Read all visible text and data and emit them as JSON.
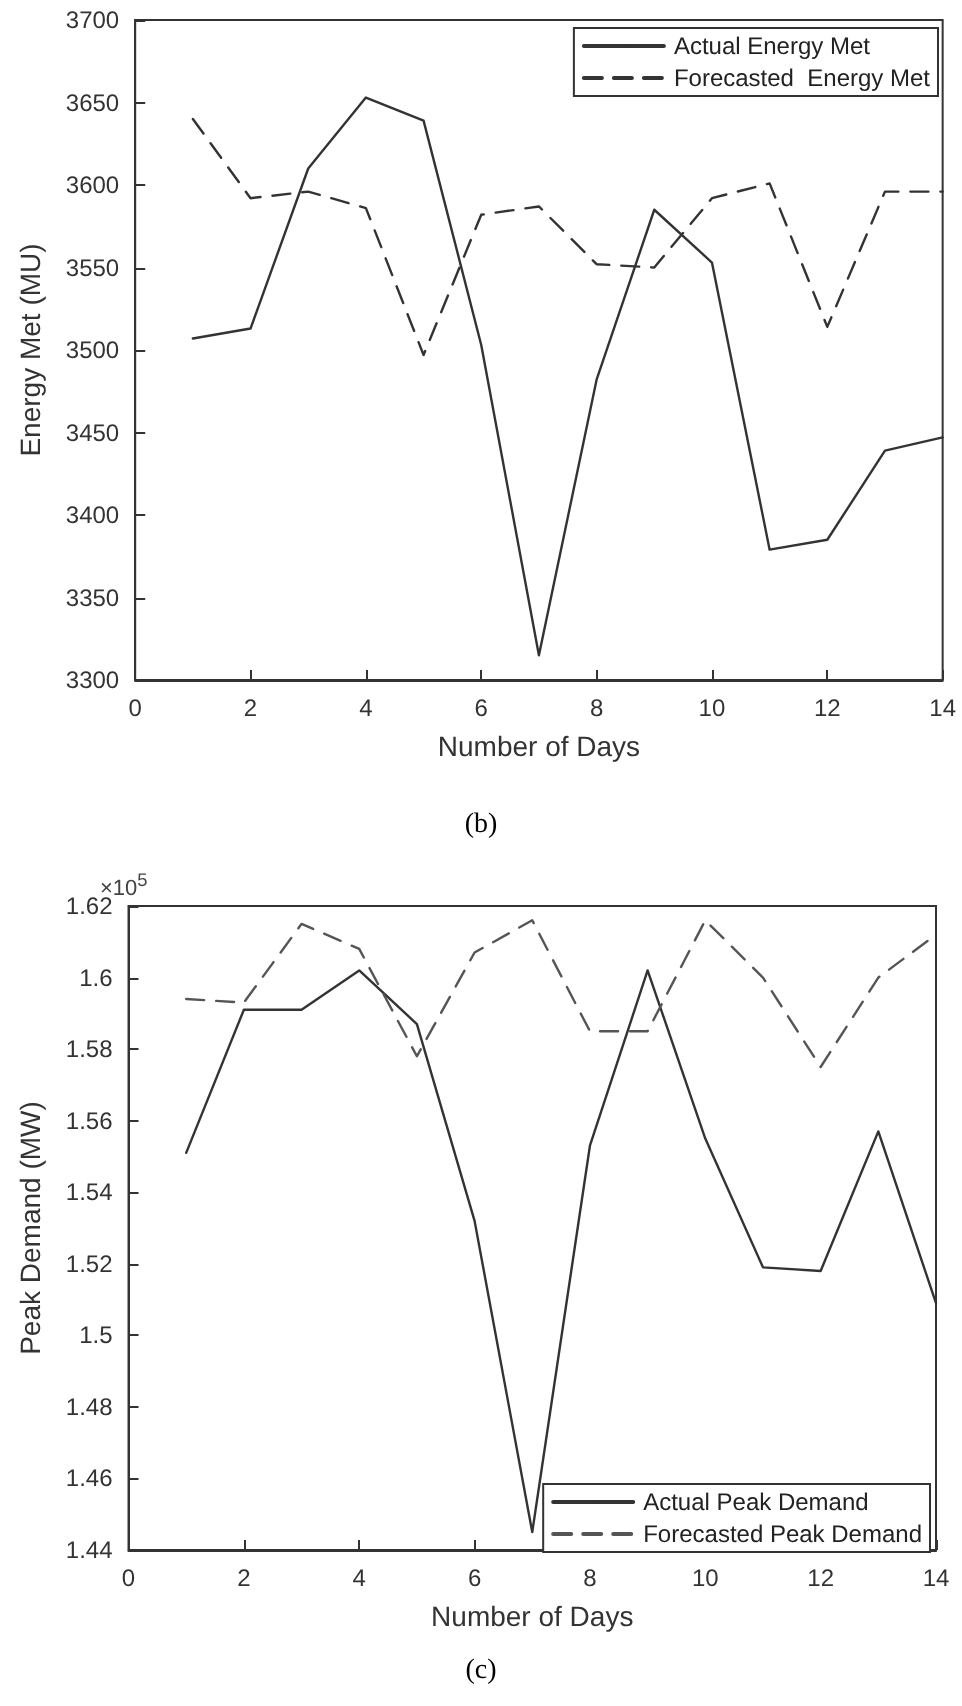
{
  "chart_data": [
    {
      "type": "line",
      "xlabel": "Number of Days",
      "ylabel": "Energy Met (MU)",
      "annotations": [
        "(b)"
      ],
      "x": [
        1,
        2,
        3,
        4,
        5,
        6,
        7,
        8,
        9,
        10,
        11,
        12,
        13,
        14
      ],
      "xlim": [
        0,
        14
      ],
      "xticks": [
        0,
        2,
        4,
        6,
        8,
        10,
        12,
        14
      ],
      "ylim": [
        3300,
        3700
      ],
      "yticks": [
        3300,
        3350,
        3400,
        3450,
        3500,
        3550,
        3600,
        3650,
        3700
      ],
      "grid": false,
      "legend": "top right",
      "marker": "none",
      "series": [
        {
          "name": "Actual Energy Met",
          "color": "#333333",
          "line_style": "solid",
          "values": [
            3507,
            3513,
            3610,
            3653,
            3639,
            3503,
            3315,
            3482,
            3585,
            3553,
            3379,
            3385,
            3439,
            3447
          ]
        },
        {
          "name": "Forecasted  Energy Met",
          "color": "#333333",
          "line_style": "dashed",
          "values": [
            3640,
            3592,
            3596,
            3586,
            3497,
            3582,
            3587,
            3552,
            3550,
            3592,
            3601,
            3514,
            3596,
            3596
          ]
        }
      ]
    },
    {
      "type": "line",
      "xlabel": "Number of Days",
      "ylabel": "Peak Demand (MW)",
      "annotations": [
        "×10$^{5}$",
        "(c)"
      ],
      "x": [
        1,
        2,
        3,
        4,
        5,
        6,
        7,
        8,
        9,
        10,
        11,
        12,
        13,
        14
      ],
      "xlim": [
        0,
        14
      ],
      "xticks": [
        0,
        2,
        4,
        6,
        8,
        10,
        12,
        14
      ],
      "ylim": [
        1.44,
        1.62
      ],
      "yticks": [
        1.44,
        1.46,
        1.48,
        1.5,
        1.52,
        1.54,
        1.56,
        1.58,
        1.6,
        1.62
      ],
      "grid": false,
      "legend": "bottom right",
      "marker": "none",
      "series": [
        {
          "name": "Actual Peak Demand",
          "color": "#333333",
          "line_style": "solid",
          "values": [
            1.551,
            1.591,
            1.591,
            1.602,
            1.587,
            1.532,
            1.445,
            1.553,
            1.602,
            1.555,
            1.519,
            1.518,
            1.557,
            1.509
          ]
        },
        {
          "name": "Forecasted Peak Demand",
          "color": "#555555",
          "line_style": "dashed",
          "values": [
            1.594,
            1.593,
            1.615,
            1.608,
            1.578,
            1.607,
            1.616,
            1.585,
            1.585,
            1.616,
            1.6,
            1.575,
            1.6,
            1.612
          ]
        }
      ]
    }
  ]
}
